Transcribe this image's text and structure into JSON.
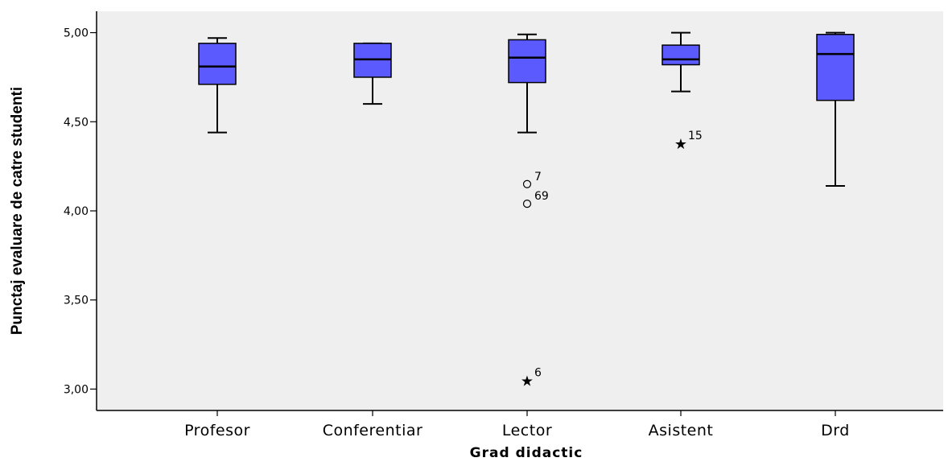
{
  "chart_data": {
    "type": "boxplot",
    "xlabel": "Grad didactic",
    "ylabel": "Punctaj evaluare de catre studenti",
    "ylim": [
      2.88,
      5.12
    ],
    "yticks": [
      3.0,
      3.5,
      4.0,
      4.5,
      5.0
    ],
    "ytick_labels": [
      "3,00",
      "3,50",
      "4,00",
      "4,50",
      "5,00"
    ],
    "box_color": "#5a5aff",
    "plot_background": "#efefef",
    "categories": [
      {
        "name": "Profesor",
        "whisker_low": 4.44,
        "q1": 4.71,
        "median": 4.81,
        "q3": 4.94,
        "whisker_high": 4.97,
        "outliers": []
      },
      {
        "name": "Conferentiar",
        "whisker_low": 4.6,
        "q1": 4.75,
        "median": 4.85,
        "q3": 4.94,
        "whisker_high": 4.94,
        "outliers": []
      },
      {
        "name": "Lector",
        "whisker_low": 4.44,
        "q1": 4.72,
        "median": 4.86,
        "q3": 4.96,
        "whisker_high": 4.99,
        "outliers": [
          {
            "value": 4.15,
            "marker": "circle",
            "label": "7"
          },
          {
            "value": 4.04,
            "marker": "circle",
            "label": "69"
          },
          {
            "value": 3.05,
            "marker": "star",
            "label": "6"
          }
        ]
      },
      {
        "name": "Asistent",
        "whisker_low": 4.67,
        "q1": 4.82,
        "median": 4.85,
        "q3": 4.93,
        "whisker_high": 5.0,
        "outliers": [
          {
            "value": 4.38,
            "marker": "star",
            "label": "15"
          }
        ]
      },
      {
        "name": "Drd",
        "whisker_low": 4.14,
        "q1": 4.62,
        "median": 4.88,
        "q3": 4.99,
        "whisker_high": 5.0,
        "outliers": []
      }
    ]
  }
}
